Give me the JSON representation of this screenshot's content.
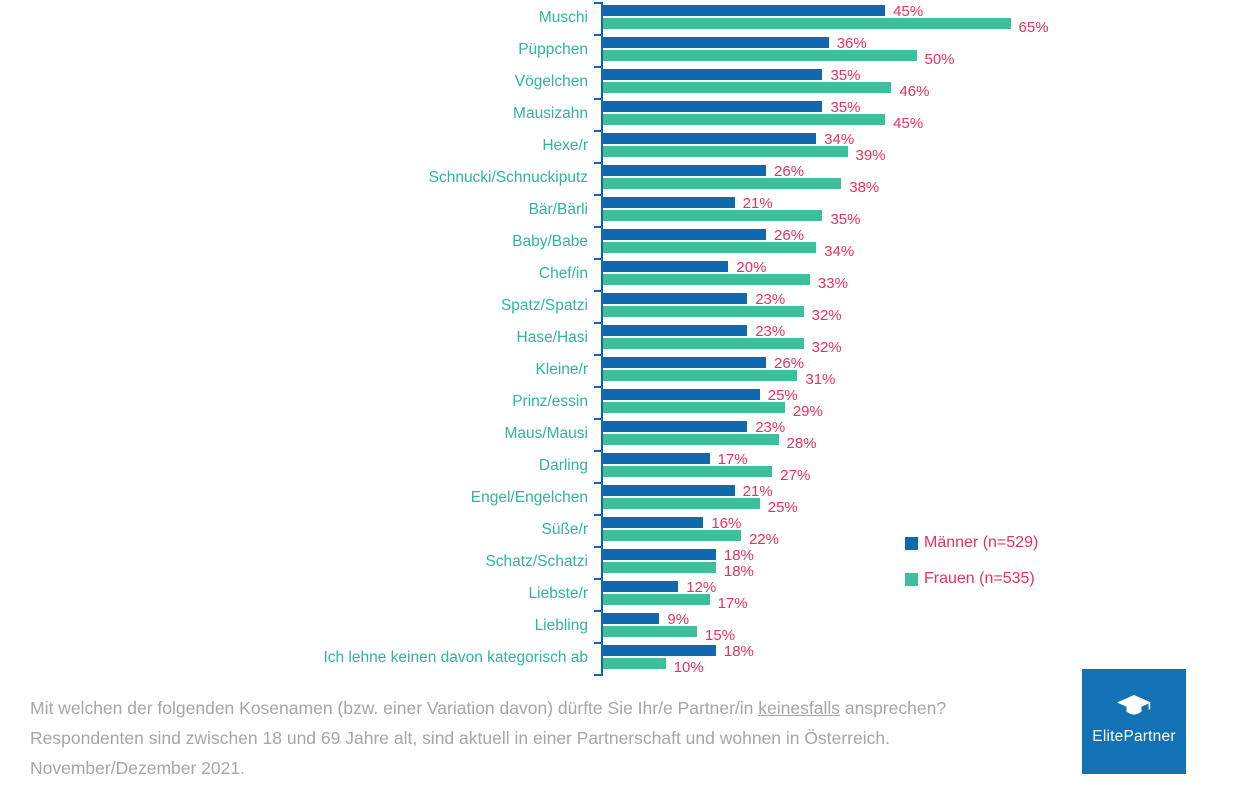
{
  "chart_data": {
    "type": "bar",
    "orientation": "horizontal",
    "value_suffix": "%",
    "categories": [
      "Muschi",
      "Püppchen",
      "Vögelchen",
      "Mausizahn",
      "Hexe/r",
      "Schnucki/Schnuckiputz",
      "Bär/Bärli",
      "Baby/Babe",
      "Chef/in",
      "Spatz/Spatzi",
      "Hase/Hasi",
      "Kleine/r",
      "Prinz/essin",
      "Maus/Mausi",
      "Darling",
      "Engel/Engelchen",
      "Süße/r",
      "Schatz/Schatzi",
      "Liebste/r",
      "Liebling",
      "Ich lehne keinen davon kategorisch ab"
    ],
    "series": [
      {
        "name": "Männer (n=529)",
        "color": "#1268AE",
        "values": [
          45,
          36,
          35,
          35,
          34,
          26,
          21,
          26,
          20,
          23,
          23,
          26,
          25,
          23,
          17,
          21,
          16,
          18,
          12,
          9,
          18
        ]
      },
      {
        "name": "Frauen (n=535)",
        "color": "#3DBF9B",
        "values": [
          65,
          50,
          46,
          45,
          39,
          38,
          35,
          34,
          33,
          32,
          32,
          31,
          29,
          28,
          27,
          25,
          22,
          18,
          17,
          15,
          10
        ]
      }
    ],
    "xlim": [
      0,
      65
    ],
    "grid": false,
    "legend_position": "right",
    "value_label_color": "#E8315B",
    "category_label_color": "#2EB59C",
    "axis_color": "#1268AE"
  },
  "legend": {
    "items": [
      {
        "label": "Männer (n=529)",
        "color": "#1268AE"
      },
      {
        "label": "Frauen (n=535)",
        "color": "#3DBF9B"
      }
    ]
  },
  "footer": {
    "line1_pre": "Mit welchen der folgenden Kosenamen (bzw. einer Variation davon) dürfte Sie Ihr/e Partner/in ",
    "line1_underlined": "keinesfalls",
    "line1_post": " ansprechen?",
    "line2": "Respondenten sind zwischen 18 und 69 Jahre alt, sind aktuell in einer Partnerschaft und wohnen in Österreich.",
    "line3": "November/Dezember 2021."
  },
  "logo": {
    "text": "ElitePartner",
    "background": "#1272B4",
    "icon": "graduation-cap-icon"
  }
}
